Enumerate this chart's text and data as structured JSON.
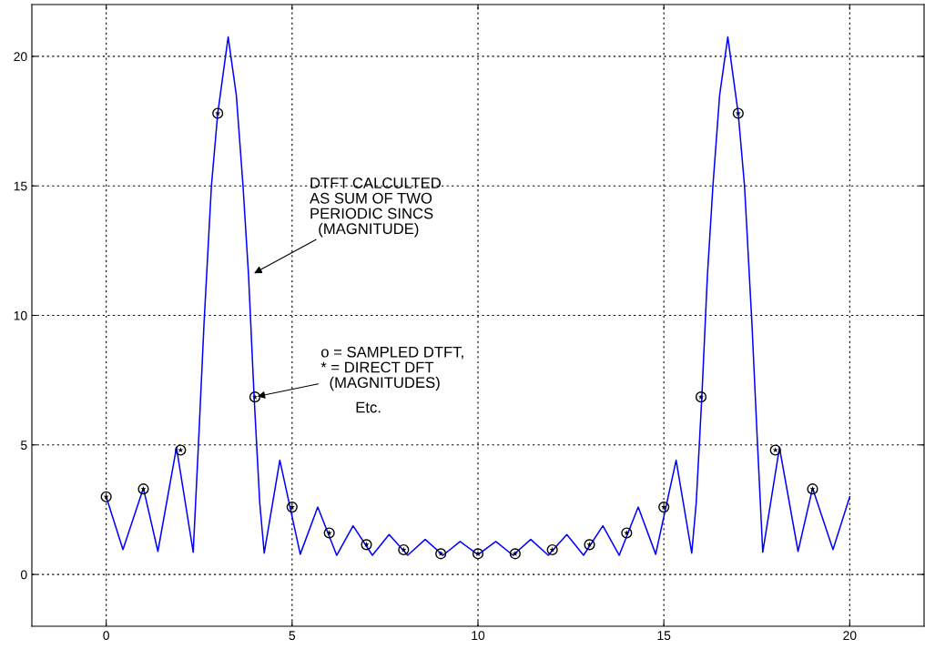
{
  "chart_data": {
    "type": "line",
    "xlim": [
      -2,
      22
    ],
    "ylim": [
      -2,
      22
    ],
    "xticks": [
      0,
      5,
      10,
      15,
      20
    ],
    "yticks": [
      0,
      5,
      10,
      15,
      20
    ],
    "grid": true,
    "legend": false,
    "series": [
      {
        "color": "#0000ff",
        "marker": "none",
        "line_style": "solid",
        "x": [
          0,
          0.45,
          1.0,
          1.39,
          1.89,
          2.34,
          2.49,
          2.63,
          2.83,
          3.0,
          3.28,
          3.5,
          3.68,
          3.83,
          3.98,
          4.13,
          4.25,
          4.67,
          5.22,
          5.69,
          6.2,
          6.64,
          7.16,
          7.61,
          8.11,
          8.58,
          9.06,
          9.52,
          10,
          10.48,
          10.94,
          11.42,
          11.89,
          12.39,
          12.84,
          13.36,
          13.8,
          14.31,
          14.78,
          15.33,
          15.75,
          15.87,
          16.02,
          16.17,
          16.32,
          16.5,
          16.72,
          17.0,
          17.17,
          17.37,
          17.51,
          17.66,
          18.11,
          18.61,
          19.0,
          19.55,
          20
        ],
        "values": [
          3.0,
          0.96,
          3.33,
          0.89,
          4.9,
          0.86,
          5.3,
          9.66,
          15.0,
          17.8,
          20.75,
          18.5,
          15.0,
          11.5,
          6.8,
          2.76,
          0.82,
          4.41,
          0.78,
          2.6,
          0.74,
          1.88,
          0.74,
          1.54,
          0.74,
          1.35,
          0.74,
          1.27,
          0.76,
          1.27,
          0.74,
          1.35,
          0.74,
          1.54,
          0.74,
          1.88,
          0.74,
          2.6,
          0.78,
          4.41,
          0.82,
          2.76,
          6.8,
          11.5,
          15.0,
          18.5,
          20.75,
          17.8,
          15.0,
          9.66,
          5.3,
          0.86,
          4.9,
          0.89,
          3.33,
          0.96,
          3.0
        ]
      },
      {
        "type": "scatter",
        "color": "#000000",
        "marker": "star",
        "x": [
          0,
          1,
          2,
          3,
          4,
          5,
          6,
          7,
          8,
          9,
          10,
          11,
          12,
          13,
          14,
          15,
          16,
          17,
          18,
          19
        ],
        "values": [
          3.0,
          3.3,
          4.8,
          17.8,
          6.85,
          2.6,
          1.6,
          1.15,
          0.95,
          0.8,
          0.8,
          0.8,
          0.95,
          1.15,
          1.6,
          2.6,
          6.85,
          17.8,
          4.8,
          3.3
        ]
      },
      {
        "type": "scatter",
        "color": "#000000",
        "marker": "circle",
        "x": [
          0,
          1,
          2,
          3,
          4,
          5,
          6,
          7,
          8,
          9,
          10,
          11,
          12,
          13,
          14,
          15,
          16,
          17,
          18,
          19
        ],
        "values": [
          3.0,
          3.3,
          4.8,
          17.8,
          6.85,
          2.6,
          1.6,
          1.15,
          0.95,
          0.8,
          0.8,
          0.8,
          0.95,
          1.15,
          1.6,
          2.6,
          6.85,
          17.8,
          4.8,
          3.3
        ]
      }
    ],
    "annotations": [
      {
        "text": "DTFT CALCULTED\nAS SUM OF TWO\nPERIODIC SINCS\n  (MAGNITUDE)",
        "x": 3.92,
        "y": 11.58
      },
      {
        "text": "o = SAMPLED DTFT,\n* = DIRECT DFT\n  (MAGNITUDES)",
        "x": 4,
        "y": 6.85
      },
      "Etc."
    ]
  }
}
